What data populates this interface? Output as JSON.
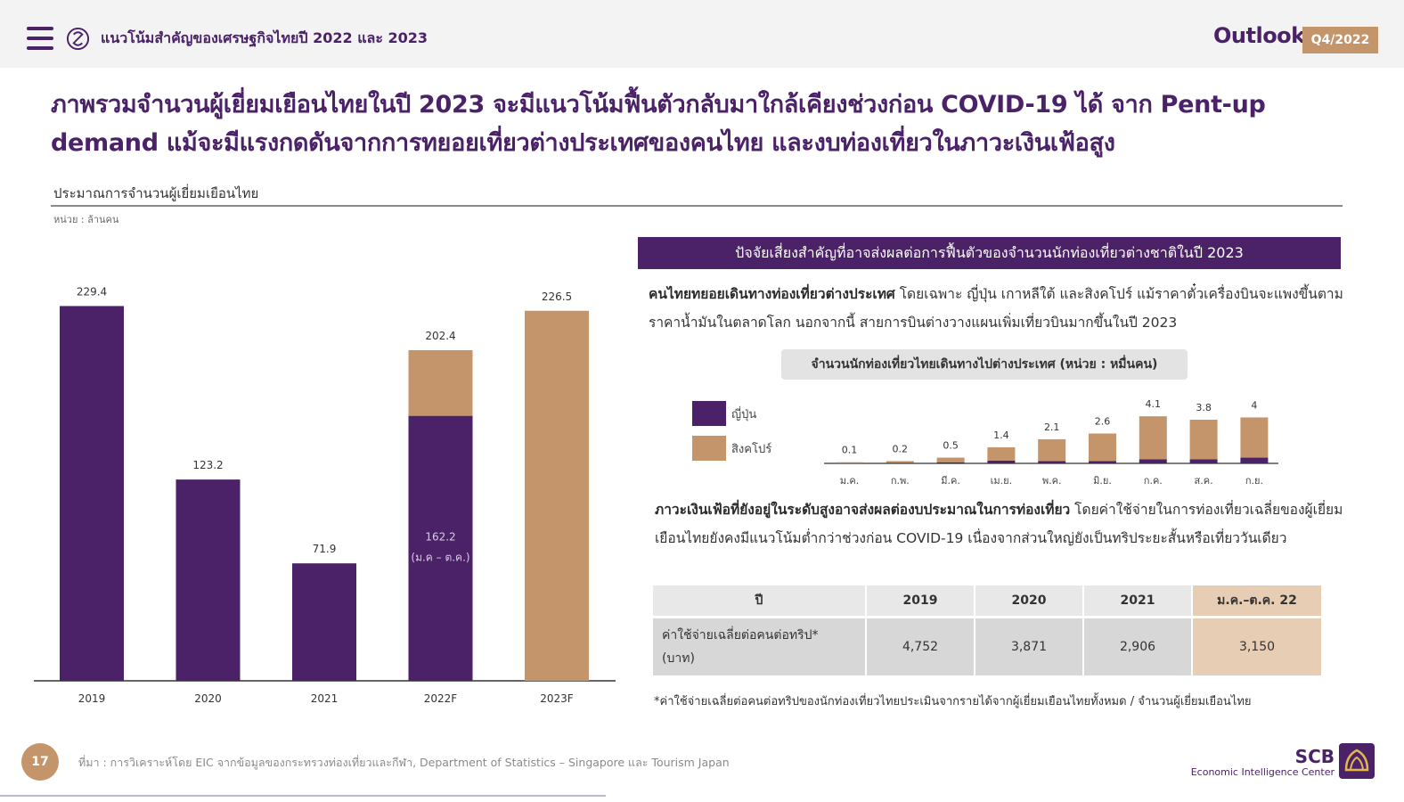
{
  "header": {
    "title": "แนวโน้มสำคัญของเศรษฐกิจไทยปี 2022 และ 2023",
    "outlook_label": "Outlook",
    "quarter": "Q4/2022",
    "menu_icon": "hamburger-menu-icon",
    "logo_icon": "scb-eic-circle-logo-icon"
  },
  "headline": {
    "line1": "ภาพรวมจำนวนผู้เยี่ยมเยือนไทยในปี 2023 จะมีแนวโน้มฟื้นตัวกลับมาใกล้เคียงช่วงก่อน COVID-19 ได้ จาก Pent-up",
    "line2": "demand แม้จะมีแรงกดดันจากการทยอยเที่ยวต่างประเทศของคนไทย และงบท่องเที่ยวในภาวะเงินเฟ้อสูง"
  },
  "left_chart": {
    "title": "ประมาณการจำนวนผู้เยี่ยมเยือนไทย",
    "unit": "หน่วย : ล้านคน"
  },
  "right": {
    "banner": "ปัจจัยเสี่ยงสำคัญที่อาจส่งผลต่อการฟื้นตัวของจำนวนนักท่องเที่ยวต่างชาติในปี 2023",
    "para1_bold": "คนไทยทยอยเดินทางท่องเที่ยวต่างประเทศ",
    "para1_text": " โดยเฉพาะ ญี่ปุ่น เกาหลีใต้ และสิงคโปร์ แม้ราคาตั๋วเครื่องบินจะแพงขึ้นตามราคาน้ำมันในตลาดโลก นอกจากนี้ สายการบินต่างวางแผนเพิ่มเที่ยวบินมากขึ้นในปี 2023",
    "mini_chart_title": "จำนวนนักท่องเที่ยวไทยเดินทางไปต่างประเทศ (หน่วย : หมื่นคน)",
    "legend_japan": "ญี่ปุ่น",
    "legend_singapore": "สิงคโปร์",
    "para2_bold": "ภาวะเงินเฟ้อที่ยังอยู่ในระดับสูงอาจส่งผลต่องบประมาณในการท่องเที่ยว",
    "para2_text": " โดยค่าใช้จ่ายในการท่องเที่ยวเฉลี่ยของผู้เยี่ยมเยือนไทยยังคงมีแนวโน้มต่ำกว่าช่วงก่อน COVID-19 เนื่องจากส่วนใหญ่ยังเป็นทริประยะสั้นหรือเที่ยววันเดียว",
    "footnote": "*ค่าใช้จ่ายเฉลี่ยต่อคนต่อทริปของนักท่องเที่ยวไทยประเมินจากรายได้จากผู้เยี่ยมเยือนไทยทั้งหมด / จำนวนผู้เยี่ยมเยือนไทย"
  },
  "table": {
    "headers": [
      "ปี",
      "2019",
      "2020",
      "2021",
      "ม.ค.–ต.ค. 22"
    ],
    "row_label_line1": "ค่าใช้จ่ายเฉลี่ยต่อคนต่อทริป*",
    "row_label_line2": "(บาท)",
    "values": [
      "4,752",
      "3,871",
      "2,906",
      "3,150"
    ]
  },
  "footer": {
    "page_number": "17",
    "source": "ที่มา : การวิเคราะห์โดย EIC จากข้อมูลของกระทรวงท่องเที่ยวและกีฬา, Department of Statistics – Singapore และ Tourism Japan",
    "brand": "SCB",
    "brand_sub": "Economic Intelligence Center",
    "brand_icon": "scb-lotus-icon"
  },
  "colors": {
    "purple": "#4b2268",
    "tan": "#c4956a",
    "tan_light": "#e6cdb4",
    "grey": "#d8d7d7"
  },
  "chart_data": [
    {
      "type": "bar",
      "title": "ประมาณการจำนวนผู้เยี่ยมเยือนไทย",
      "unit": "หน่วย : ล้านคน",
      "categories": [
        "2019",
        "2020",
        "2021",
        "2022F",
        "2023F"
      ],
      "values": [
        229.4,
        123.2,
        71.9,
        202.4,
        226.5
      ],
      "stacked_detail": {
        "category": "2022F",
        "actual": 162.2,
        "actual_label_line1": "162.2",
        "actual_label_line2": "(ม.ค – ต.ค.)"
      },
      "bar_colors": [
        "#4b2268",
        "#4b2268",
        "#4b2268",
        "stacked",
        "#c4956a"
      ],
      "ylim": [
        0,
        240
      ],
      "grid": false,
      "legend": "none"
    },
    {
      "type": "bar",
      "stacked": true,
      "title": "จำนวนนักท่องเที่ยวไทยเดินทางไปต่างประเทศ (หน่วย : หมื่นคน)",
      "categories": [
        "ม.ค.",
        "ก.พ.",
        "มี.ค.",
        "เม.ย.",
        "พ.ค.",
        "มิ.ย.",
        "ก.ค.",
        "ส.ค.",
        "ก.ย."
      ],
      "totals": [
        0.1,
        0.2,
        0.5,
        1.4,
        2.1,
        2.6,
        4.1,
        3.8,
        4.0
      ],
      "series": [
        {
          "name": "ญี่ปุ่น",
          "color": "#4b2268",
          "values": [
            0.02,
            0.05,
            0.1,
            0.25,
            0.2,
            0.2,
            0.35,
            0.35,
            0.5
          ]
        },
        {
          "name": "สิงคโปร์",
          "color": "#c4956a",
          "values": [
            0.08,
            0.15,
            0.4,
            1.15,
            1.9,
            2.4,
            3.75,
            3.45,
            3.5
          ]
        }
      ],
      "ylim": [
        0,
        4.5
      ],
      "legend": "left"
    }
  ]
}
